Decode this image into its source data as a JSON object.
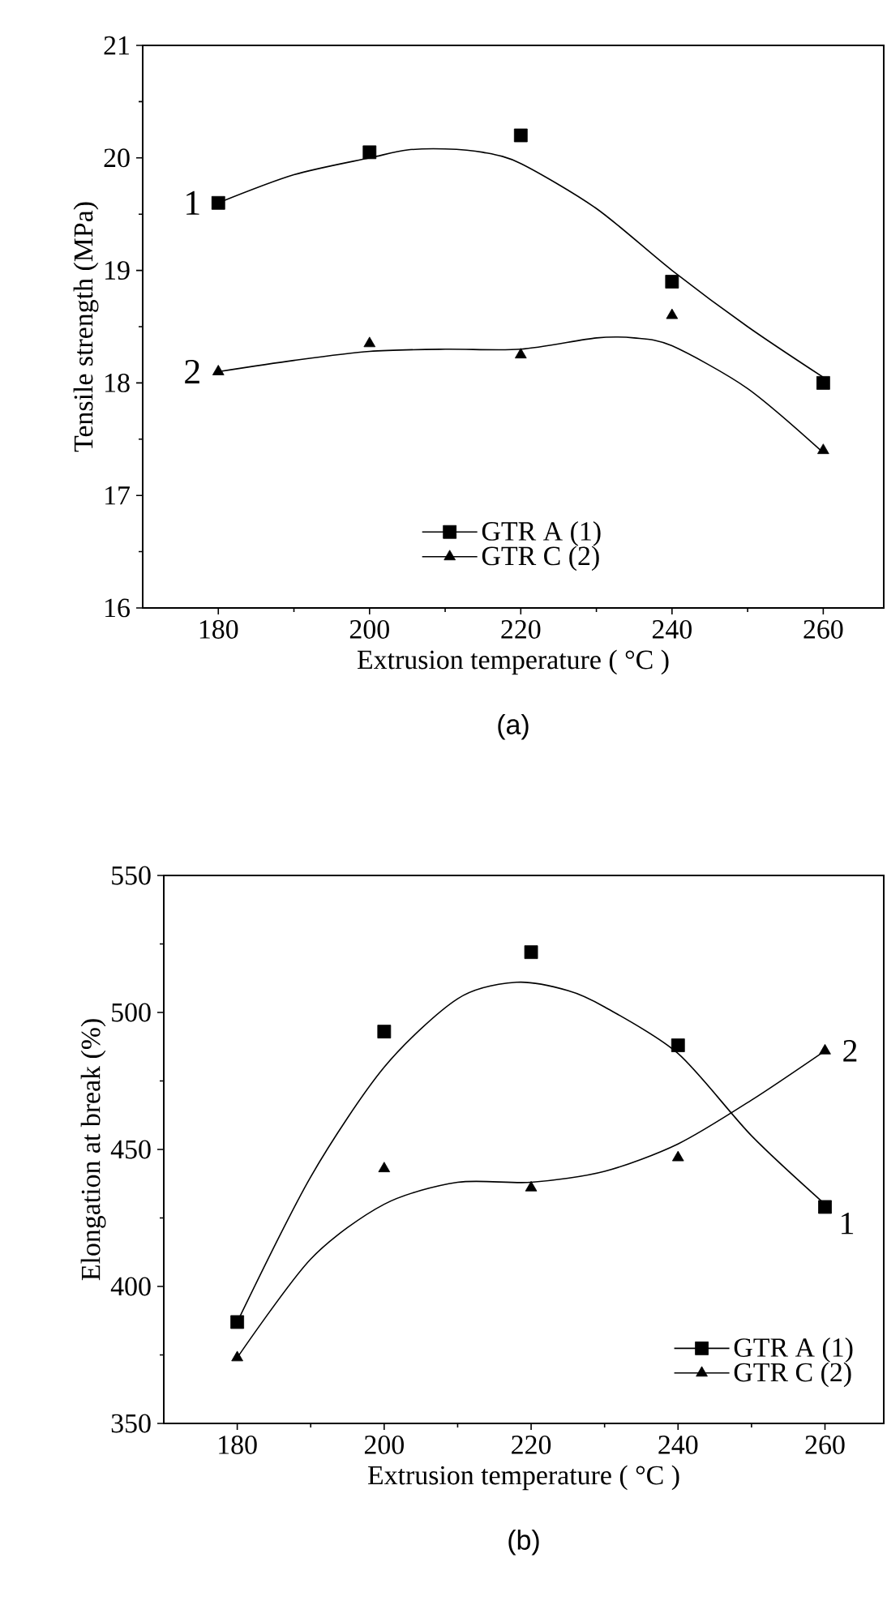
{
  "chart_data": [
    {
      "type": "scatter",
      "xlabel": "Extrusion temperature ( °C )",
      "ylabel": "Tensile strength (MPa)",
      "xlim": [
        170,
        268
      ],
      "ylim": [
        16,
        21
      ],
      "xticks": [
        180,
        200,
        220,
        240,
        260
      ],
      "yticks": [
        16,
        17,
        18,
        19,
        20,
        21
      ],
      "legend": "bottom",
      "series": [
        {
          "name": "GTR A (1)",
          "marker": "square",
          "color": "#000000",
          "x": [
            180,
            200,
            220,
            240,
            260
          ],
          "values": [
            19.6,
            20.05,
            20.2,
            18.9,
            18.0
          ]
        },
        {
          "name": "GTR C (2)",
          "marker": "triangle",
          "color": "#000000",
          "x": [
            180,
            200,
            220,
            240,
            260
          ],
          "values": [
            18.1,
            18.35,
            18.25,
            18.6,
            17.4
          ]
        },
        {
          "type": "line",
          "color": "#000000",
          "x": [
            180,
            190,
            200,
            205,
            210,
            215,
            220,
            230,
            240,
            250,
            260
          ],
          "values": [
            19.6,
            19.85,
            20.0,
            20.07,
            20.08,
            20.05,
            19.95,
            19.55,
            19.0,
            18.5,
            18.05
          ]
        },
        {
          "type": "line",
          "color": "#000000",
          "x": [
            180,
            190,
            200,
            210,
            220,
            230,
            235,
            240,
            250,
            260
          ],
          "values": [
            18.1,
            18.2,
            18.28,
            18.3,
            18.3,
            18.4,
            18.4,
            18.33,
            17.95,
            17.38
          ]
        }
      ],
      "annotations": [
        "1",
        "2",
        "(a)"
      ]
    },
    {
      "type": "scatter",
      "xlabel": "Extrusion temperature ( °C )",
      "ylabel": "Elongation at break (%)",
      "xlim": [
        170,
        268
      ],
      "ylim": [
        350,
        550
      ],
      "xticks": [
        180,
        200,
        220,
        240,
        260
      ],
      "yticks": [
        350,
        400,
        450,
        500,
        550
      ],
      "legend": "bottom right",
      "series": [
        {
          "name": "GTR A (1)",
          "marker": "square",
          "color": "#000000",
          "x": [
            180,
            200,
            220,
            240,
            260
          ],
          "values": [
            387,
            493,
            522,
            488,
            429
          ]
        },
        {
          "name": "GTR C (2)",
          "marker": "triangle",
          "color": "#000000",
          "x": [
            180,
            200,
            220,
            240,
            260
          ],
          "values": [
            374,
            443,
            436,
            447,
            486
          ]
        },
        {
          "type": "line",
          "color": "#000000",
          "x": [
            180,
            190,
            200,
            210,
            218,
            225,
            230,
            240,
            250,
            260
          ],
          "values": [
            387,
            440,
            480,
            505,
            511,
            508,
            502,
            485,
            455,
            430
          ]
        },
        {
          "type": "line",
          "color": "#000000",
          "x": [
            180,
            190,
            200,
            210,
            220,
            230,
            240,
            250,
            260
          ],
          "values": [
            374,
            410,
            430,
            438,
            438,
            442,
            452,
            468,
            486
          ]
        }
      ],
      "annotations": [
        "2",
        "1",
        "(b)"
      ]
    }
  ]
}
